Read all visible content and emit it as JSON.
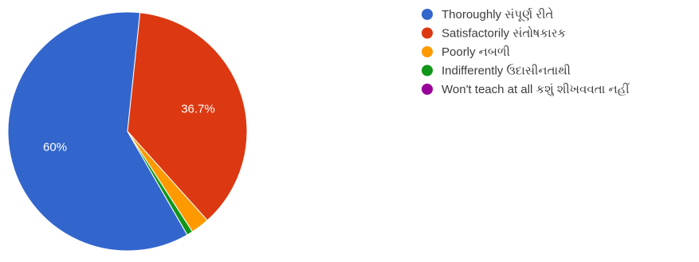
{
  "chart_data": {
    "type": "pie",
    "slices": [
      {
        "label": "Thoroughly સંપૂર્ણ રીતે",
        "value": 60.0,
        "color": "#3366cc",
        "display": "60%"
      },
      {
        "label": "Satisfactorily સંતોષકારક",
        "value": 36.7,
        "color": "#dc3912",
        "display": "36.7%"
      },
      {
        "label": "Poorly નબળી",
        "value": 2.5,
        "color": "#ff9900",
        "display": ""
      },
      {
        "label": "Indifferently ઉદાસીનતાથી",
        "value": 0.8,
        "color": "#109618",
        "display": ""
      },
      {
        "label": "Won't teach at all કશું શીખવવતા નહીં",
        "value": 0.0,
        "color": "#990099",
        "display": ""
      }
    ],
    "legend_position": "right"
  }
}
